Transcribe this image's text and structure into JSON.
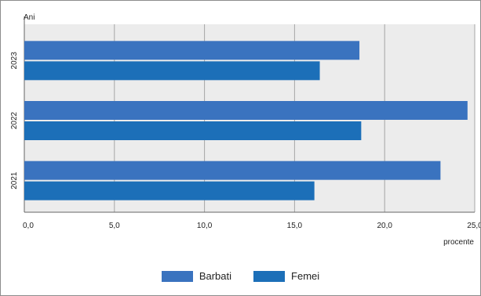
{
  "chart_data": {
    "type": "bar",
    "orientation": "horizontal",
    "ylabel": "Ani",
    "xlabel": "procente",
    "categories": [
      "2023",
      "2022",
      "2021"
    ],
    "series": [
      {
        "name": "Barbati",
        "values": [
          18.6,
          24.6,
          23.1
        ],
        "color": "#3a73bf"
      },
      {
        "name": "Femei",
        "values": [
          16.4,
          18.7,
          16.1
        ],
        "color": "#1c6fb8"
      }
    ],
    "xlim": [
      0,
      25
    ],
    "xticks": [
      "0,0",
      "5,0",
      "10,0",
      "15,0",
      "20,0",
      "25,0"
    ],
    "grid": true,
    "plot_background": "#ececec",
    "legend_position": "bottom"
  }
}
